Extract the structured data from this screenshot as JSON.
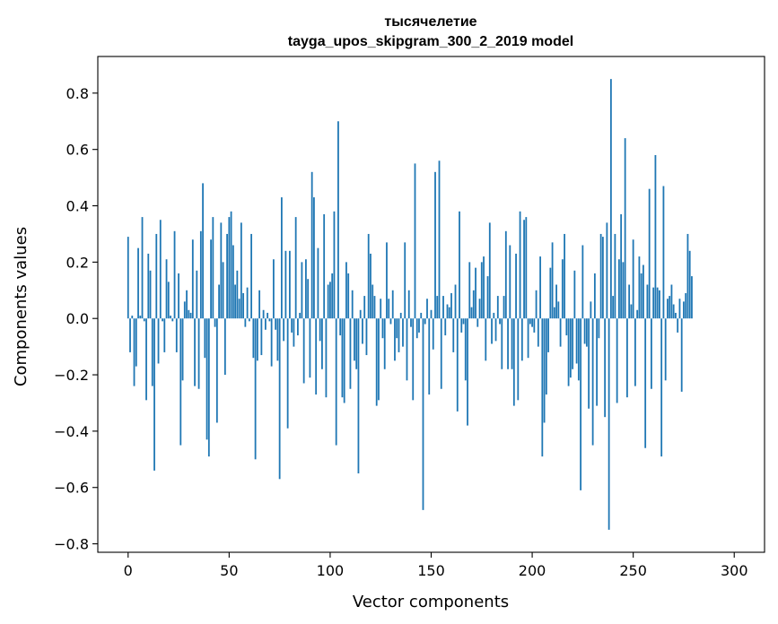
{
  "chart_data": {
    "type": "bar",
    "title_line1": "тысячелетие",
    "title_line2": "tayga_upos_skipgram_300_2_2019 model",
    "xlabel": "Vector components",
    "ylabel": "Components values",
    "xlim": [
      -15,
      315
    ],
    "ylim": [
      -0.83,
      0.93
    ],
    "xticks": [
      0,
      50,
      100,
      150,
      200,
      250,
      300
    ],
    "yticks": [
      -0.8,
      -0.6,
      -0.4,
      -0.2,
      0.0,
      0.2,
      0.4,
      0.6,
      0.8
    ],
    "ytick_labels": [
      "−0.8",
      "−0.6",
      "−0.4",
      "−0.2",
      "0.0",
      "0.2",
      "0.4",
      "0.6",
      "0.8"
    ],
    "bar_color": "#1f77b4",
    "values": [
      0.29,
      -0.12,
      0.01,
      -0.24,
      -0.17,
      0.25,
      0.01,
      0.36,
      -0.01,
      -0.29,
      0.23,
      0.17,
      -0.24,
      -0.54,
      0.3,
      -0.16,
      0.35,
      -0.01,
      -0.12,
      0.21,
      0.13,
      0.01,
      -0.01,
      0.31,
      -0.12,
      0.16,
      -0.45,
      -0.22,
      0.06,
      0.1,
      0.03,
      0.02,
      0.28,
      -0.24,
      0.17,
      -0.25,
      0.31,
      0.48,
      -0.14,
      -0.43,
      -0.49,
      0.28,
      0.36,
      -0.03,
      -0.37,
      0.12,
      0.34,
      0.2,
      -0.2,
      0.3,
      0.36,
      0.38,
      0.26,
      0.12,
      0.17,
      0.07,
      0.34,
      0.09,
      -0.03,
      0.11,
      -0.01,
      0.3,
      -0.14,
      -0.5,
      -0.15,
      0.1,
      -0.13,
      0.03,
      -0.04,
      0.02,
      -0.01,
      -0.17,
      0.21,
      -0.04,
      -0.15,
      -0.57,
      0.43,
      -0.08,
      0.24,
      -0.39,
      0.24,
      -0.05,
      -0.1,
      0.36,
      -0.06,
      0.02,
      0.2,
      -0.23,
      0.21,
      0.14,
      -0.21,
      0.52,
      0.43,
      -0.27,
      0.25,
      -0.08,
      -0.18,
      0.37,
      -0.28,
      0.12,
      0.13,
      0.16,
      0.38,
      -0.45,
      0.7,
      -0.06,
      -0.28,
      -0.3,
      0.2,
      0.16,
      -0.25,
      0.1,
      -0.15,
      -0.18,
      -0.55,
      0.03,
      -0.09,
      0.08,
      -0.13,
      0.3,
      0.23,
      0.12,
      0.08,
      -0.31,
      -0.29,
      0.07,
      -0.07,
      -0.18,
      0.27,
      0.07,
      -0.02,
      0.1,
      -0.15,
      -0.07,
      -0.12,
      0.02,
      -0.1,
      0.27,
      -0.22,
      0.1,
      -0.03,
      -0.29,
      0.55,
      -0.07,
      -0.05,
      0.02,
      -0.68,
      -0.02,
      0.07,
      -0.27,
      0.03,
      -0.11,
      0.52,
      0.08,
      0.56,
      -0.25,
      0.08,
      -0.06,
      0.05,
      0.04,
      0.09,
      -0.12,
      0.12,
      -0.33,
      0.38,
      -0.05,
      -0.02,
      -0.22,
      -0.38,
      0.2,
      0.04,
      0.1,
      0.18,
      -0.03,
      0.07,
      0.2,
      0.22,
      -0.15,
      0.15,
      0.34,
      -0.09,
      0.02,
      -0.08,
      0.08,
      -0.02,
      -0.18,
      0.08,
      0.31,
      -0.18,
      0.26,
      -0.18,
      -0.31,
      0.23,
      -0.29,
      0.38,
      -0.15,
      0.35,
      0.36,
      -0.14,
      -0.02,
      -0.03,
      -0.05,
      0.1,
      -0.1,
      0.22,
      -0.49,
      -0.37,
      -0.27,
      -0.12,
      0.18,
      0.27,
      0.04,
      0.12,
      0.06,
      -0.1,
      0.21,
      0.3,
      -0.06,
      -0.24,
      -0.21,
      -0.18,
      0.17,
      -0.16,
      -0.22,
      -0.61,
      0.26,
      -0.09,
      -0.1,
      -0.32,
      0.06,
      -0.45,
      0.16,
      -0.31,
      -0.07,
      0.3,
      0.29,
      -0.35,
      0.34,
      -0.75,
      0.85,
      0.08,
      0.3,
      -0.3,
      0.21,
      0.37,
      0.2,
      0.64,
      -0.28,
      0.12,
      0.05,
      0.28,
      -0.24,
      0.03,
      0.22,
      0.16,
      0.19,
      -0.46,
      0.12,
      0.46,
      -0.25,
      0.11,
      0.58,
      0.11,
      0.1,
      -0.49,
      0.47,
      -0.22,
      0.07,
      0.08,
      0.12,
      0.05,
      0.02,
      -0.05,
      0.07,
      -0.26,
      0.06,
      0.09,
      0.3,
      0.24,
      0.15
    ]
  }
}
